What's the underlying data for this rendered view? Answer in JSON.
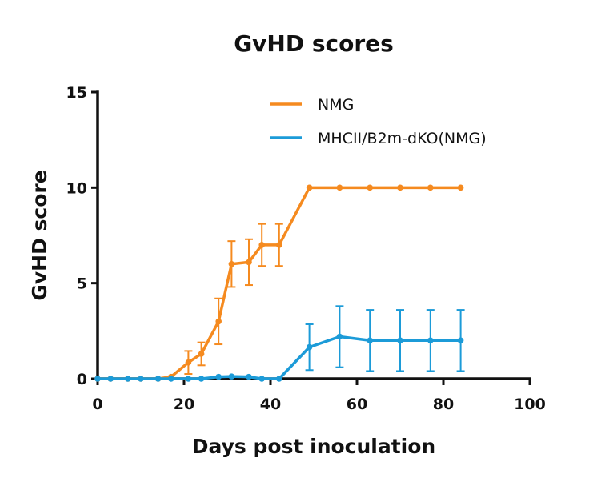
{
  "chart_data": {
    "type": "line",
    "title": "GvHD scores",
    "xlabel": "Days post inoculation",
    "ylabel": "GvHD score",
    "xlim": [
      0,
      100
    ],
    "ylim": [
      0,
      15
    ],
    "xticks": [
      0,
      20,
      40,
      60,
      80,
      100
    ],
    "yticks": [
      0,
      5,
      10,
      15
    ],
    "grid": false,
    "legend_position": "top-right",
    "series": [
      {
        "name": "NMG",
        "color": "#F58A1F",
        "x": [
          0,
          3,
          7,
          10,
          14,
          17,
          21,
          24,
          28,
          31,
          35,
          38,
          42,
          49,
          56,
          63,
          70,
          77,
          84
        ],
        "y": [
          0,
          0,
          0,
          0,
          0,
          0.1,
          0.85,
          1.3,
          3.0,
          6.0,
          6.1,
          7.0,
          7.0,
          10,
          10,
          10,
          10,
          10,
          10
        ],
        "error": [
          0,
          0,
          0,
          0,
          0,
          0,
          0.6,
          0.6,
          1.2,
          1.2,
          1.2,
          1.1,
          1.1,
          0,
          0,
          0,
          0,
          0,
          0
        ]
      },
      {
        "name": "MHCII/B2m-dKO(NMG)",
        "color": "#1C9BD8",
        "x": [
          0,
          3,
          7,
          10,
          14,
          17,
          21,
          24,
          28,
          31,
          35,
          38,
          42,
          49,
          56,
          63,
          70,
          77,
          84
        ],
        "y": [
          0,
          0,
          0,
          0,
          0,
          0,
          0,
          0,
          0.1,
          0.12,
          0.1,
          0,
          0,
          1.65,
          2.2,
          2.0,
          2.0,
          2.0,
          2.0
        ],
        "error": [
          0,
          0,
          0,
          0,
          0,
          0,
          0,
          0,
          0,
          0,
          0,
          0,
          0,
          1.2,
          1.6,
          1.6,
          1.6,
          1.6,
          1.6
        ]
      }
    ]
  }
}
